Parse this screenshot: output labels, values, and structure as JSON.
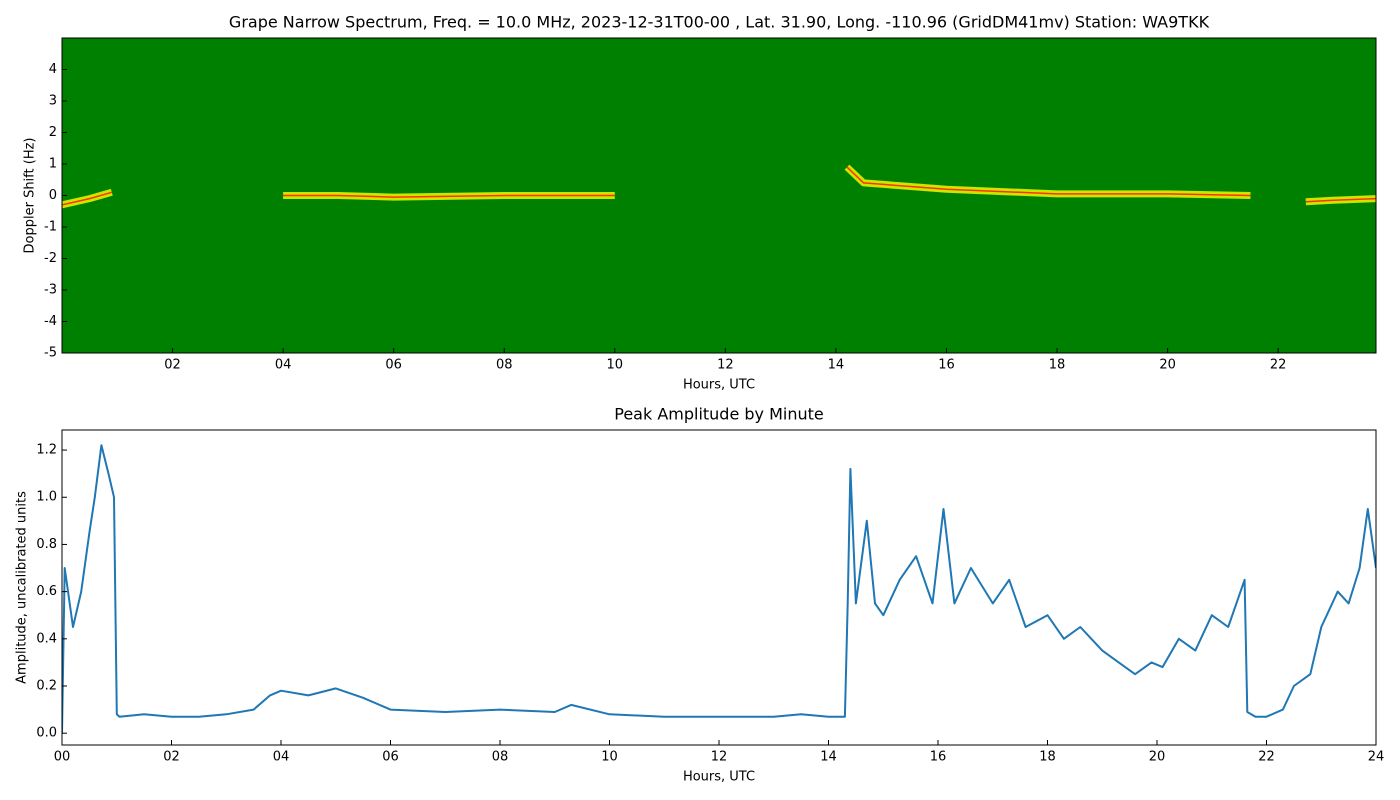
{
  "chart_data": [
    {
      "type": "spectrogram",
      "title": "Grape Narrow Spectrum, Freq. = 10.0 MHz, 2023-12-31T00-00 , Lat.  31.90, Long. -110.96 (GridDM41mv) Station: WA9TKK",
      "xlabel": "Hours, UTC",
      "ylabel": "Doppler Shift (Hz)",
      "background": "#008000",
      "xlim": [
        0,
        23.77
      ],
      "ylim": [
        -5,
        5
      ],
      "xticks": [
        {
          "value": 2,
          "label": "02"
        },
        {
          "value": 4,
          "label": "04"
        },
        {
          "value": 6,
          "label": "06"
        },
        {
          "value": 8,
          "label": "08"
        },
        {
          "value": 10,
          "label": "10"
        },
        {
          "value": 12,
          "label": "12"
        },
        {
          "value": 14,
          "label": "14"
        },
        {
          "value": 16,
          "label": "16"
        },
        {
          "value": 18,
          "label": "18"
        },
        {
          "value": 20,
          "label": "20"
        },
        {
          "value": 22,
          "label": "22"
        }
      ],
      "yticks": [
        -5,
        -4,
        -3,
        -2,
        -1,
        0,
        1,
        2,
        3,
        4
      ],
      "x": [
        0,
        0.5,
        0.9,
        1.5,
        3,
        4,
        5,
        6,
        8,
        10,
        10.8,
        12,
        14.2,
        14.5,
        16,
        18,
        20,
        21.5,
        21.6,
        22,
        22.5,
        23,
        23.77
      ],
      "series": [
        {
          "color": "#ffff00",
          "values": [
            -0.3,
            -0.1,
            0.1,
            null,
            null,
            0,
            0,
            -0.05,
            0,
            0,
            null,
            null,
            0.9,
            0.4,
            0.2,
            0.05,
            0.05,
            0,
            null,
            null,
            -0.2,
            -0.15,
            -0.1
          ]
        }
      ]
    },
    {
      "type": "line",
      "title": "Peak Amplitude by Minute",
      "xlabel": "Hours, UTC",
      "ylabel": "Amplitude, uncalibrated units",
      "xlim": [
        0,
        24
      ],
      "ylim": [
        -0.05,
        1.285
      ],
      "xticks": [
        {
          "value": 0,
          "label": "00"
        },
        {
          "value": 2,
          "label": "02"
        },
        {
          "value": 4,
          "label": "04"
        },
        {
          "value": 6,
          "label": "06"
        },
        {
          "value": 8,
          "label": "08"
        },
        {
          "value": 10,
          "label": "10"
        },
        {
          "value": 12,
          "label": "12"
        },
        {
          "value": 14,
          "label": "14"
        },
        {
          "value": 16,
          "label": "16"
        },
        {
          "value": 18,
          "label": "18"
        },
        {
          "value": 20,
          "label": "20"
        },
        {
          "value": 22,
          "label": "22"
        },
        {
          "value": 24,
          "label": "24"
        }
      ],
      "yticks": [
        {
          "value": 0,
          "label": "0.0"
        },
        0.2,
        0.4,
        0.6,
        0.8,
        {
          "value": 1,
          "label": "1.0"
        },
        1.2
      ],
      "x": [
        0,
        0.05,
        0.2,
        0.35,
        0.5,
        0.6,
        0.72,
        0.85,
        0.95,
        1.0,
        1.05,
        1.5,
        2,
        2.5,
        3,
        3.5,
        3.8,
        4,
        4.5,
        5,
        5.5,
        6,
        7,
        8,
        9,
        9.3,
        10,
        11,
        12,
        13,
        13.5,
        14,
        14.3,
        14.35,
        14.4,
        14.5,
        14.7,
        14.85,
        15,
        15.3,
        15.6,
        15.9,
        16.1,
        16.3,
        16.6,
        17,
        17.3,
        17.6,
        18,
        18.3,
        18.6,
        19,
        19.3,
        19.6,
        19.9,
        20.1,
        20.4,
        20.7,
        21,
        21.3,
        21.6,
        21.65,
        21.8,
        22,
        22.3,
        22.5,
        22.8,
        23,
        23.3,
        23.5,
        23.7,
        23.85,
        24
      ],
      "series": [
        {
          "color": "#1f77b4",
          "values": [
            0.0,
            0.7,
            0.45,
            0.6,
            0.85,
            1.0,
            1.22,
            1.1,
            1.0,
            0.08,
            0.07,
            0.08,
            0.07,
            0.07,
            0.08,
            0.1,
            0.16,
            0.18,
            0.16,
            0.19,
            0.15,
            0.1,
            0.09,
            0.1,
            0.09,
            0.12,
            0.08,
            0.07,
            0.07,
            0.07,
            0.08,
            0.07,
            0.07,
            0.55,
            1.12,
            0.55,
            0.9,
            0.55,
            0.5,
            0.65,
            0.75,
            0.55,
            0.95,
            0.55,
            0.7,
            0.55,
            0.65,
            0.45,
            0.5,
            0.4,
            0.45,
            0.35,
            0.3,
            0.25,
            0.3,
            0.28,
            0.4,
            0.35,
            0.5,
            0.45,
            0.65,
            0.09,
            0.07,
            0.07,
            0.1,
            0.2,
            0.25,
            0.45,
            0.6,
            0.55,
            0.7,
            0.95,
            0.7
          ]
        }
      ]
    }
  ]
}
